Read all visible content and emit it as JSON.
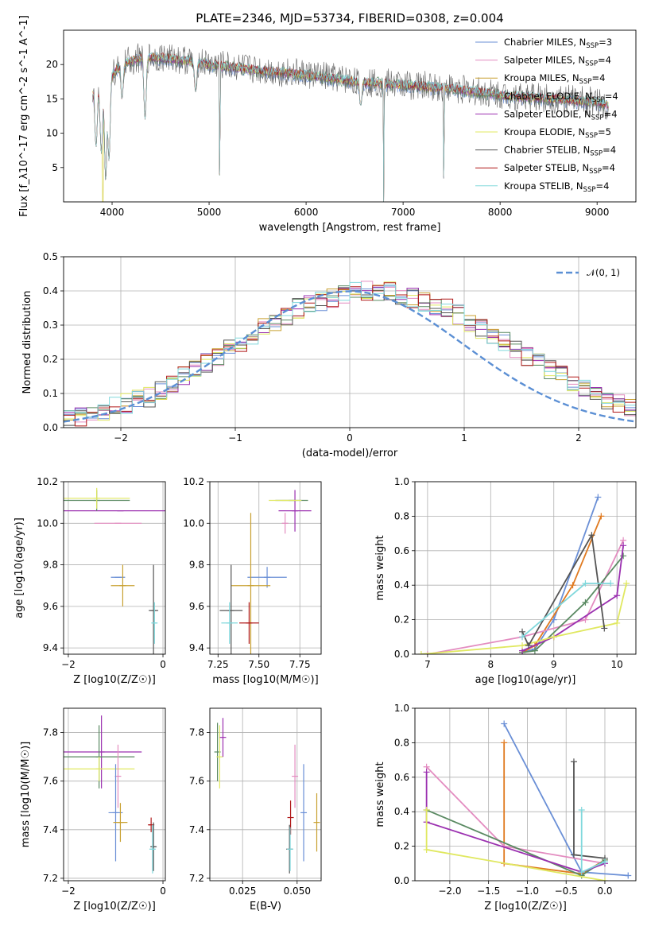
{
  "title": "PLATE=2346, MJD=53734, FIBERID=0308, z=0.004",
  "colors": {
    "Chabrier MILES": "#6a8fd6",
    "Salpeter MILES": "#e38cc0",
    "Kroupa MILES": "#c8a030",
    "Chabrier ELODIE": "#5a8a62",
    "Salpeter ELODIE": "#9b30b0",
    "Kroupa ELODIE": "#e0e860",
    "Chabrier STELIB": "#555555",
    "Salpeter STELIB": "#b01818",
    "Kroupa STELIB": "#80d8dc",
    "Chabrier MILES line": "#6a8fd6",
    "orange": "#e07a20"
  },
  "chart_data": [
    {
      "type": "line",
      "name": "spectrum",
      "xlabel": "wavelength [Angstrom, rest frame]",
      "ylabel": "Flux [f_λ10^-17 erg cm^-2 s^-1 A^-1]",
      "xlim": [
        3500,
        9400
      ],
      "ylim": [
        0,
        25
      ],
      "xticks": [
        "4000",
        "5000",
        "6000",
        "7000",
        "8000",
        "9000"
      ],
      "yticks": [
        "5",
        "10",
        "15",
        "20"
      ],
      "legend_position": "upper-right",
      "legend": [
        {
          "label": "Chabrier MILES, N",
          "sub": "SSP",
          "eq": "=3"
        },
        {
          "label": "Salpeter MILES, N",
          "sub": "SSP",
          "eq": "=4"
        },
        {
          "label": "Kroupa MILES, N",
          "sub": "SSP",
          "eq": "=4"
        },
        {
          "label": "Chabrier ELODIE, N",
          "sub": "SSP",
          "eq": "=4"
        },
        {
          "label": "Salpeter ELODIE, N",
          "sub": "SSP",
          "eq": "=4"
        },
        {
          "label": "Kroupa ELODIE, N",
          "sub": "SSP",
          "eq": "=5"
        },
        {
          "label": "Chabrier STELIB, N",
          "sub": "SSP",
          "eq": "=4"
        },
        {
          "label": "Salpeter STELIB, N",
          "sub": "SSP",
          "eq": "=4"
        },
        {
          "label": "Kroupa STELIB, N",
          "sub": "SSP",
          "eq": "=4"
        }
      ],
      "continuum_points": [
        [
          3800,
          16
        ],
        [
          3900,
          17
        ],
        [
          4000,
          18.5
        ],
        [
          4100,
          20
        ],
        [
          4300,
          21
        ],
        [
          4500,
          21
        ],
        [
          4800,
          20.5
        ],
        [
          5000,
          20
        ],
        [
          5300,
          19.5
        ],
        [
          5600,
          19
        ],
        [
          6000,
          18.5
        ],
        [
          6500,
          17.5
        ],
        [
          7000,
          17
        ],
        [
          7500,
          16.5
        ],
        [
          8000,
          15.5
        ],
        [
          8500,
          15
        ],
        [
          9000,
          14.5
        ],
        [
          9120,
          14
        ]
      ],
      "absorption_lines": [
        [
          3835,
          8
        ],
        [
          3889,
          7
        ],
        [
          3934,
          3
        ],
        [
          3968,
          6
        ],
        [
          4102,
          15
        ],
        [
          4340,
          12
        ],
        [
          4861,
          16
        ],
        [
          5110,
          0
        ],
        [
          6563,
          14
        ],
        [
          6800,
          0
        ],
        [
          7420,
          0.5
        ]
      ]
    },
    {
      "type": "histogram",
      "name": "residuals",
      "xlabel": "(data-model)/error",
      "ylabel": "Normed distribution",
      "xlim": [
        -2.5,
        2.5
      ],
      "ylim": [
        0,
        0.5
      ],
      "xticks": [
        "-2",
        "-1",
        "0",
        "1",
        "2"
      ],
      "yticks": [
        "0.0",
        "0.1",
        "0.2",
        "0.3",
        "0.4",
        "0.5"
      ],
      "legend": [
        "𝒩(0, 1)"
      ],
      "bin_width": 0.1,
      "base_values": [
        0.03,
        0.03,
        0.04,
        0.05,
        0.06,
        0.07,
        0.08,
        0.09,
        0.11,
        0.13,
        0.15,
        0.17,
        0.19,
        0.21,
        0.23,
        0.25,
        0.27,
        0.29,
        0.31,
        0.33,
        0.35,
        0.36,
        0.37,
        0.38,
        0.39,
        0.4,
        0.4,
        0.4,
        0.4,
        0.39,
        0.38,
        0.37,
        0.36,
        0.35,
        0.33,
        0.31,
        0.29,
        0.27,
        0.25,
        0.23,
        0.21,
        0.19,
        0.17,
        0.15,
        0.13,
        0.11,
        0.09,
        0.08,
        0.07,
        0.06
      ]
    },
    {
      "type": "errorbar",
      "name": "age-vs-Z",
      "xlabel": "Z [log10(Z/Z☉)]",
      "ylabel": "age [log10(age/yr)]",
      "xlim": [
        -2.1,
        0.05
      ],
      "ylim": [
        9.37,
        10.2
      ],
      "xticks": [
        "-2",
        "0"
      ],
      "yticks": [
        "9.4",
        "9.6",
        "9.8",
        "10.0",
        "10.2"
      ],
      "points": [
        {
          "model": "Chabrier MILES",
          "x": -0.95,
          "y": 9.74,
          "xerr": 0.15,
          "yerr": 0.0
        },
        {
          "model": "Kroupa MILES",
          "x": -0.85,
          "y": 9.7,
          "xerr": 0.25,
          "yerr": 0.1
        },
        {
          "model": "Salpeter ELODIE",
          "x": -0.9,
          "y": 10.06,
          "xerr": 1.2,
          "yerr": 0.0
        },
        {
          "model": "Salpeter MILES",
          "x": -0.95,
          "y": 10.0,
          "xerr": 0.5,
          "yerr": 0.0
        },
        {
          "model": "Chabrier ELODIE",
          "x": -1.4,
          "y": 10.11,
          "xerr": 0.7,
          "yerr": 0.05
        },
        {
          "model": "Kroupa ELODIE",
          "x": -1.4,
          "y": 10.12,
          "xerr": 0.7,
          "yerr": 0.05
        },
        {
          "model": "Chabrier STELIB",
          "x": -0.2,
          "y": 9.58,
          "xerr": 0.1,
          "yerr": 0.22
        },
        {
          "model": "Kroupa STELIB",
          "x": -0.18,
          "y": 9.52,
          "xerr": 0.05,
          "yerr": 0.1
        }
      ]
    },
    {
      "type": "errorbar",
      "name": "age-vs-mass",
      "xlabel": "mass [log10(M/M☉)]",
      "ylabel": "",
      "xlim": [
        7.2,
        7.88
      ],
      "ylim": [
        9.37,
        10.2
      ],
      "xticks": [
        "7.25",
        "7.50",
        "7.75"
      ],
      "yticks": [
        "9.4",
        "9.6",
        "9.8",
        "10.0",
        "10.2"
      ],
      "points": [
        {
          "model": "Chabrier MILES",
          "x": 7.55,
          "y": 9.74,
          "xerr": 0.12,
          "yerr": 0.05
        },
        {
          "model": "Kroupa MILES",
          "x": 7.45,
          "y": 9.7,
          "xerr": 0.12,
          "yerr": 0.35
        },
        {
          "model": "Salpeter STELIB",
          "x": 7.44,
          "y": 9.52,
          "xerr": 0.06,
          "yerr": 0.1
        },
        {
          "model": "Chabrier STELIB",
          "x": 7.33,
          "y": 9.58,
          "xerr": 0.07,
          "yerr": 0.22
        },
        {
          "model": "Kroupa STELIB",
          "x": 7.32,
          "y": 9.52,
          "xerr": 0.05,
          "yerr": 0.1
        },
        {
          "model": "Salpeter ELODIE",
          "x": 7.72,
          "y": 10.06,
          "xerr": 0.1,
          "yerr": 0.1
        },
        {
          "model": "Chabrier ELODIE",
          "x": 7.7,
          "y": 10.11,
          "xerr": 0.1,
          "yerr": 0.0
        },
        {
          "model": "Kroupa ELODIE",
          "x": 7.66,
          "y": 10.11,
          "xerr": 0.1,
          "yerr": 0.0
        },
        {
          "model": "Salpeter MILES",
          "x": 7.66,
          "y": 10.0,
          "xerr": 0.0,
          "yerr": 0.05
        }
      ]
    },
    {
      "type": "line",
      "name": "mass-weight-vs-age",
      "xlabel": "age [log10(age/yr)]",
      "ylabel": "mass weight",
      "xlim": [
        6.8,
        10.3
      ],
      "ylim": [
        0,
        1
      ],
      "xticks": [
        "7",
        "8",
        "9",
        "10"
      ],
      "yticks": [
        "0.0",
        "0.2",
        "0.4",
        "0.6",
        "0.8",
        "1.0"
      ],
      "series": [
        {
          "model": "Chabrier MILES",
          "x": [
            8.5,
            8.7,
            9.0,
            9.7
          ],
          "y": [
            0.01,
            0.03,
            0.2,
            0.91
          ]
        },
        {
          "model": "Kroupa MILES",
          "x": [
            8.5,
            8.7,
            9.3,
            9.75
          ],
          "y": [
            0.01,
            0.05,
            0.4,
            0.8
          ]
        },
        {
          "model": "Salpeter MILES",
          "x": [
            7.0,
            8.5,
            9.5,
            10.1
          ],
          "y": [
            0.0,
            0.1,
            0.2,
            0.66
          ]
        },
        {
          "model": "Chabrier ELODIE",
          "x": [
            8.5,
            8.7,
            9.5,
            10.1
          ],
          "y": [
            0.01,
            0.02,
            0.3,
            0.57
          ]
        },
        {
          "model": "Salpeter ELODIE",
          "x": [
            8.5,
            9.0,
            10.0,
            10.1
          ],
          "y": [
            0.02,
            0.1,
            0.34,
            0.63
          ]
        },
        {
          "model": "Kroupa ELODIE",
          "x": [
            6.9,
            8.5,
            9.0,
            10.0,
            10.15
          ],
          "y": [
            0.0,
            0.05,
            0.1,
            0.18,
            0.41
          ]
        },
        {
          "model": "Chabrier STELIB",
          "x": [
            8.5,
            8.6,
            9.6,
            9.8
          ],
          "y": [
            0.13,
            0.05,
            0.69,
            0.15
          ]
        },
        {
          "model": "Kroupa STELIB",
          "x": [
            8.5,
            9.5,
            9.9
          ],
          "y": [
            0.1,
            0.41,
            0.41
          ]
        }
      ]
    },
    {
      "type": "errorbar",
      "name": "mass-vs-Z",
      "xlabel": "Z [log10(Z/Z☉)]",
      "ylabel": "mass [log10(M/M☉)]",
      "xlim": [
        -2.1,
        0.05
      ],
      "ylim": [
        7.19,
        7.9
      ],
      "xticks": [
        "-2",
        "0"
      ],
      "yticks": [
        "7.2",
        "7.4",
        "7.6",
        "7.8"
      ],
      "points": [
        {
          "model": "Salpeter ELODIE",
          "x": -1.3,
          "y": 7.72,
          "xerr": 0.85,
          "yerr": 0.15
        },
        {
          "model": "Chabrier ELODIE",
          "x": -1.35,
          "y": 7.7,
          "xerr": 0.75,
          "yerr": 0.13
        },
        {
          "model": "Kroupa ELODIE",
          "x": -1.35,
          "y": 7.65,
          "xerr": 0.75,
          "yerr": 0.05
        },
        {
          "model": "Salpeter MILES",
          "x": -0.95,
          "y": 7.62,
          "xerr": 0.0,
          "yerr": 0.13
        },
        {
          "model": "Chabrier MILES",
          "x": -1.0,
          "y": 7.47,
          "xerr": 0.15,
          "yerr": 0.2
        },
        {
          "model": "Kroupa MILES",
          "x": -0.9,
          "y": 7.43,
          "xerr": 0.15,
          "yerr": 0.08
        },
        {
          "model": "Salpeter STELIB",
          "x": -0.25,
          "y": 7.42,
          "xerr": 0.05,
          "yerr": 0.03
        },
        {
          "model": "Chabrier STELIB",
          "x": -0.2,
          "y": 7.33,
          "xerr": 0.05,
          "yerr": 0.1
        },
        {
          "model": "Kroupa STELIB",
          "x": -0.22,
          "y": 7.32,
          "xerr": 0.05,
          "yerr": 0.1
        }
      ]
    },
    {
      "type": "errorbar",
      "name": "mass-vs-EBV",
      "xlabel": "E(B-V)",
      "ylabel": "",
      "xlim": [
        0.01,
        0.061
      ],
      "ylim": [
        7.19,
        7.9
      ],
      "xticks": [
        "0.025",
        "0.050"
      ],
      "yticks": [
        "7.2",
        "7.4",
        "7.6",
        "7.8"
      ],
      "points": [
        {
          "model": "Chabrier ELODIE",
          "x": 0.0135,
          "y": 7.72,
          "xerr": 0.0,
          "yerr": 0.12
        },
        {
          "model": "Kroupa ELODIE",
          "x": 0.0145,
          "y": 7.7,
          "xerr": 0.0,
          "yerr": 0.13
        },
        {
          "model": "Salpeter ELODIE",
          "x": 0.016,
          "y": 7.78,
          "xerr": 0.0,
          "yerr": 0.08
        },
        {
          "model": "Salpeter MILES",
          "x": 0.049,
          "y": 7.62,
          "xerr": 0.0,
          "yerr": 0.13
        },
        {
          "model": "Chabrier MILES",
          "x": 0.053,
          "y": 7.47,
          "xerr": 0.0,
          "yerr": 0.2
        },
        {
          "model": "Kroupa MILES",
          "x": 0.059,
          "y": 7.43,
          "xerr": 0.0,
          "yerr": 0.12
        },
        {
          "model": "Salpeter STELIB",
          "x": 0.047,
          "y": 7.45,
          "xerr": 0.0,
          "yerr": 0.07
        },
        {
          "model": "Chabrier STELIB",
          "x": 0.0465,
          "y": 7.32,
          "xerr": 0.0,
          "yerr": 0.1
        },
        {
          "model": "Kroupa STELIB",
          "x": 0.0468,
          "y": 7.32,
          "xerr": 0.0,
          "yerr": 0.09
        }
      ]
    },
    {
      "type": "line",
      "name": "mass-weight-vs-Z",
      "xlabel": "Z [log10(Z/Z☉)]",
      "ylabel": "mass weight",
      "xlim": [
        -2.45,
        0.4
      ],
      "ylim": [
        0,
        1
      ],
      "xticks": [
        "-2.0",
        "-1.5",
        "-1.0",
        "-0.5",
        "0.0"
      ],
      "yticks": [
        "0.0",
        "0.2",
        "0.4",
        "0.6",
        "0.8",
        "1.0"
      ],
      "series": [
        {
          "model": "Chabrier MILES",
          "x": [
            -1.3,
            -0.3,
            0.3
          ],
          "y": [
            0.91,
            0.05,
            0.03
          ]
        },
        {
          "model": "Kroupa MILES",
          "x": [
            -1.3,
            -1.3,
            -0.3,
            0.0
          ],
          "y": [
            0.8,
            0.1,
            0.04,
            0.12
          ]
        },
        {
          "model": "Salpeter MILES",
          "x": [
            -2.3,
            -1.3,
            0.0
          ],
          "y": [
            0.66,
            0.2,
            0.1
          ]
        },
        {
          "model": "Chabrier ELODIE",
          "x": [
            -2.3,
            -0.3,
            0.0
          ],
          "y": [
            0.41,
            0.03,
            0.12
          ]
        },
        {
          "model": "Salpeter ELODIE",
          "x": [
            -2.3,
            -2.3,
            -0.3,
            0.0
          ],
          "y": [
            0.63,
            0.34,
            0.05,
            0.1
          ]
        },
        {
          "model": "Kroupa ELODIE",
          "x": [
            -2.3,
            -2.3,
            0.0
          ],
          "y": [
            0.41,
            0.18,
            0.0
          ]
        },
        {
          "model": "Chabrier STELIB",
          "x": [
            -0.4,
            -0.4,
            0.0
          ],
          "y": [
            0.69,
            0.15,
            0.13
          ]
        },
        {
          "model": "Kroupa STELIB",
          "x": [
            -0.3,
            -0.3,
            0.0
          ],
          "y": [
            0.41,
            0.05,
            0.11
          ]
        }
      ]
    }
  ]
}
